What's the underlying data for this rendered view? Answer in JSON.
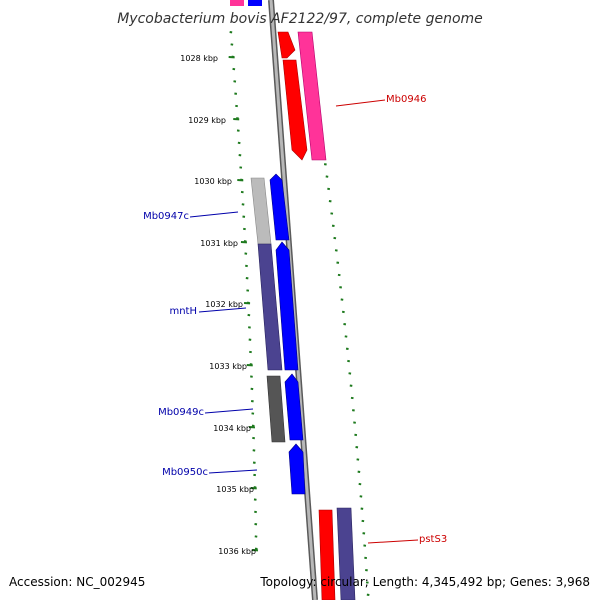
{
  "title": "Mycobacterium bovis AF2122/97, complete genome",
  "footer": {
    "accession": "Accession: NC_002945",
    "summary": "Topology: circular; Length: 4,345,492 bp; Genes: 3,968"
  },
  "colors": {
    "tick_green": "#1e7a1e",
    "backbone": "#8a8a8a",
    "forward_label": "#cc0000",
    "reverse_label": "#0000aa",
    "gene_red": "#ff0000",
    "gene_pink": "#ff3399",
    "gene_blue": "#0000ff",
    "gene_slate": "#4b4390",
    "gene_gray": "#555555",
    "gene_lightgray": "#bbbbbb"
  },
  "kbp_ticks": [
    {
      "label": "1028 kbp"
    },
    {
      "label": "1029 kbp"
    },
    {
      "label": "1030 kbp"
    },
    {
      "label": "1031 kbp"
    },
    {
      "label": "1032 kbp"
    },
    {
      "label": "1033 kbp"
    },
    {
      "label": "1034 kbp"
    },
    {
      "label": "1035 kbp"
    },
    {
      "label": "1036 kbp"
    }
  ],
  "gene_labels": [
    {
      "name": "Mb0946",
      "strand": "forward"
    },
    {
      "name": "Mb0947c",
      "strand": "reverse"
    },
    {
      "name": "mntH",
      "strand": "reverse"
    },
    {
      "name": "Mb0949c",
      "strand": "reverse"
    },
    {
      "name": "Mb0950c",
      "strand": "reverse"
    },
    {
      "name": "pstS3",
      "strand": "forward"
    }
  ]
}
